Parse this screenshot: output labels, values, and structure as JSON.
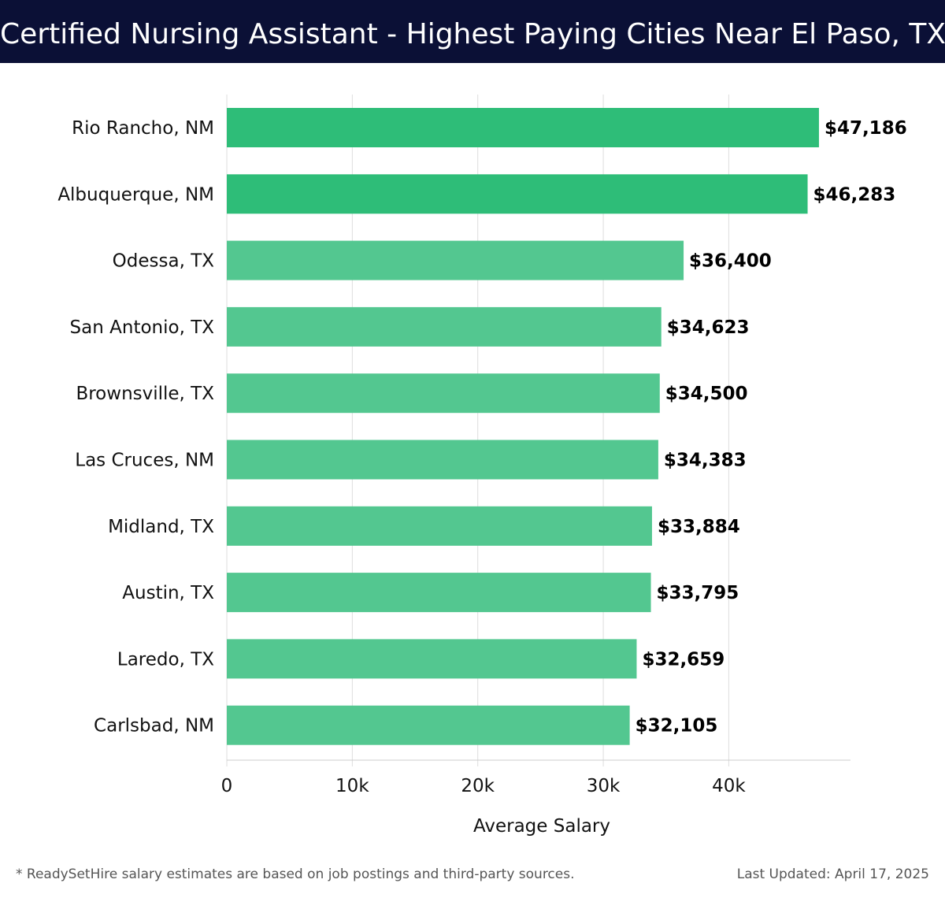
{
  "header": {
    "title": "Certified Nursing Assistant - Highest Paying Cities Near El Paso, TX"
  },
  "chart_data": {
    "type": "bar",
    "orientation": "horizontal",
    "title": "Certified Nursing Assistant - Highest Paying Cities Near El Paso, TX",
    "xlabel": "Average Salary",
    "ylabel": "",
    "categories": [
      "Rio Rancho, NM",
      "Albuquerque, NM",
      "Odessa, TX",
      "San Antonio, TX",
      "Brownsville, TX",
      "Las Cruces, NM",
      "Midland, TX",
      "Austin, TX",
      "Laredo, TX",
      "Carlsbad, NM"
    ],
    "values": [
      47186,
      46283,
      36400,
      34623,
      34500,
      34383,
      33884,
      33795,
      32659,
      32105
    ],
    "value_labels": [
      "$47,186",
      "$46,283",
      "$36,400",
      "$34,623",
      "$34,500",
      "$34,383",
      "$33,884",
      "$33,795",
      "$32,659",
      "$32,105"
    ],
    "xticks": [
      0,
      10000,
      20000,
      30000,
      40000
    ],
    "xtick_labels": [
      "0",
      "10k",
      "20k",
      "30k",
      "40k"
    ],
    "xlim": [
      0,
      49700
    ],
    "grid": true,
    "colors": {
      "highlight": "#2ebd78",
      "default": "#53c790"
    },
    "highlighted_count": 2
  },
  "footer": {
    "note": "* ReadySetHire salary estimates are based on job postings and third-party sources.",
    "updated": "Last Updated: April 17, 2025"
  }
}
